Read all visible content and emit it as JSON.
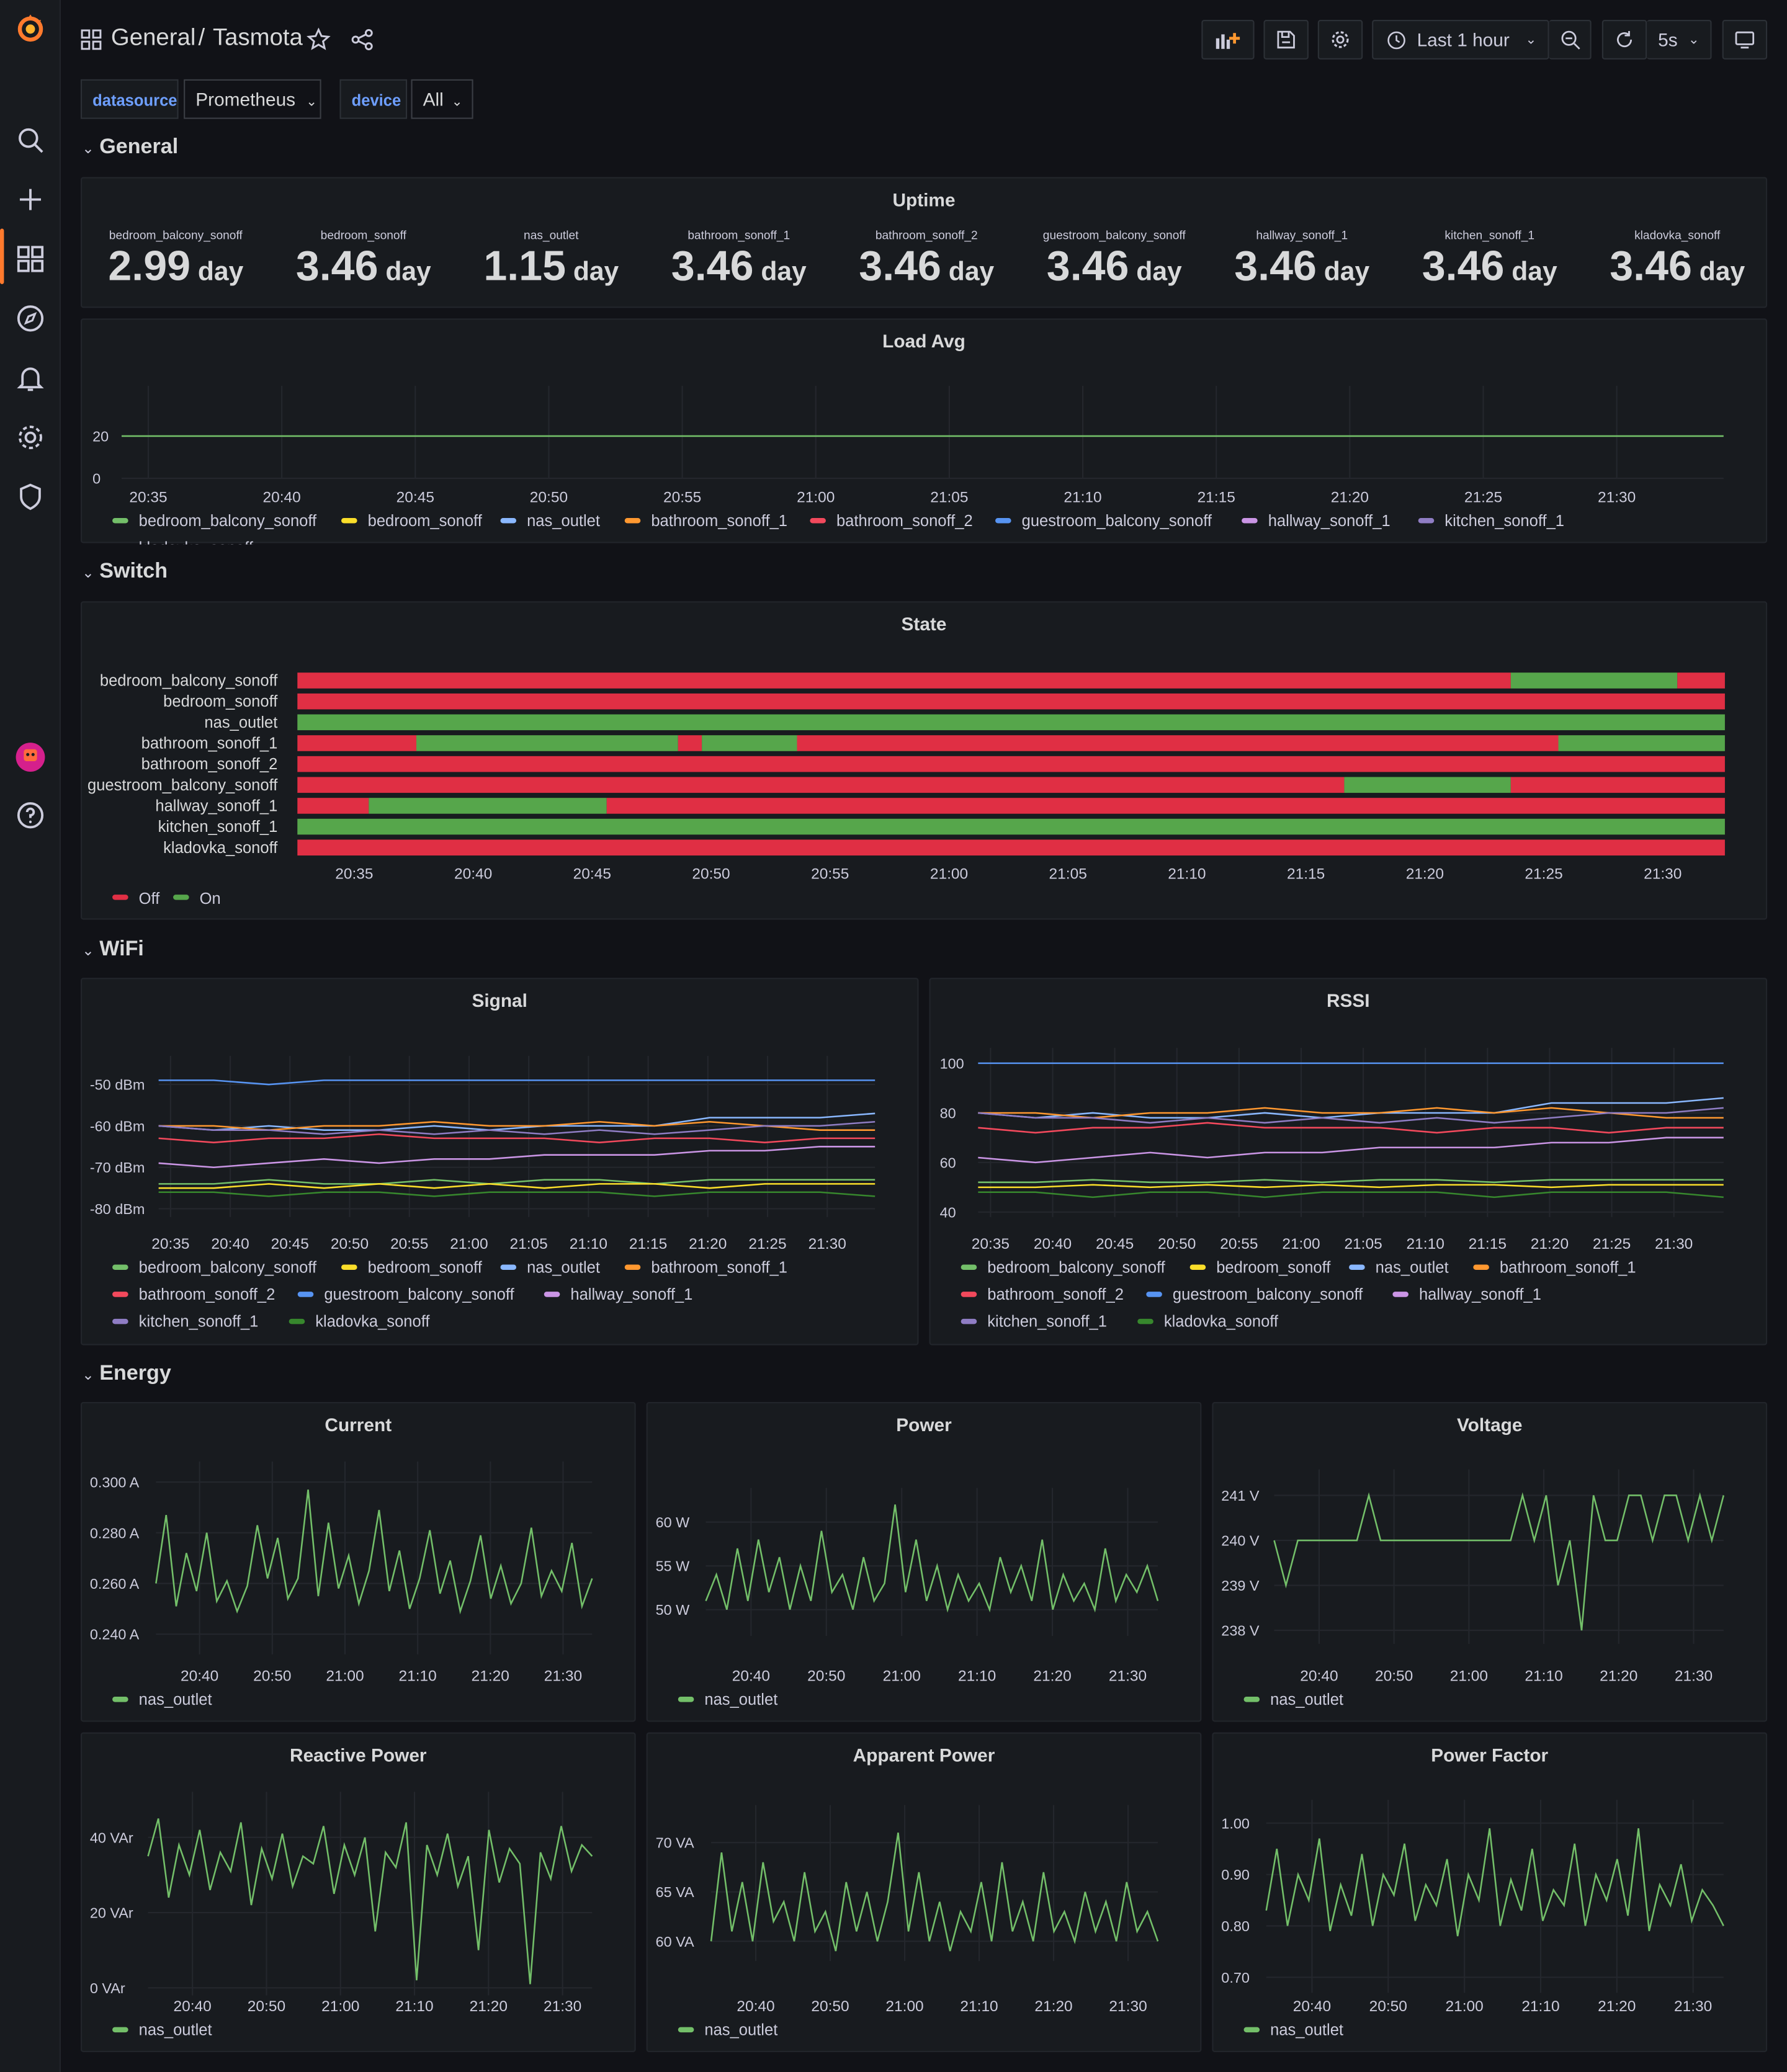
{
  "breadcrumb": {
    "folder": "General",
    "dashboard": "Tasmota"
  },
  "toolbar": {
    "time_range": "Last 1 hour",
    "refresh": "5s"
  },
  "variables": [
    {
      "label": "datasource",
      "value": "Prometheus"
    },
    {
      "label": "device",
      "value": "All"
    }
  ],
  "colors": {
    "green": "#73bf69",
    "yellow": "#fade2a",
    "lightblue": "#8ab8ff",
    "orange": "#ff9830",
    "red": "#f2495c",
    "blue": "#5794f2",
    "pink": "#ca95e5",
    "purple": "#8f7dc4",
    "darkgreen": "#37872d",
    "on": "#56a64b",
    "off": "#e02f44"
  },
  "rows": {
    "general": "General",
    "switch": "Switch",
    "wifi": "WiFi",
    "energy": "Energy"
  },
  "devices": [
    "bedroom_balcony_sonoff",
    "bedroom_sonoff",
    "nas_outlet",
    "bathroom_sonoff_1",
    "bathroom_sonoff_2",
    "guestroom_balcony_sonoff",
    "hallway_sonoff_1",
    "kitchen_sonoff_1",
    "kladovka_sonoff"
  ],
  "uptime": {
    "title": "Uptime",
    "unit": "day",
    "stats": [
      {
        "name": "bedroom_balcony_sonoff",
        "value": "2.99"
      },
      {
        "name": "bedroom_sonoff",
        "value": "3.46"
      },
      {
        "name": "nas_outlet",
        "value": "1.15"
      },
      {
        "name": "bathroom_sonoff_1",
        "value": "3.46"
      },
      {
        "name": "bathroom_sonoff_2",
        "value": "3.46"
      },
      {
        "name": "guestroom_balcony_sonoff",
        "value": "3.46"
      },
      {
        "name": "hallway_sonoff_1",
        "value": "3.46"
      },
      {
        "name": "kitchen_sonoff_1",
        "value": "3.46"
      },
      {
        "name": "kladovka_sonoff",
        "value": "3.46"
      }
    ]
  },
  "time_ticks_5m": [
    "20:35",
    "20:40",
    "20:45",
    "20:50",
    "20:55",
    "21:00",
    "21:05",
    "21:10",
    "21:15",
    "21:20",
    "21:25",
    "21:30"
  ],
  "time_ticks_10m": [
    "20:40",
    "20:50",
    "21:00",
    "21:10",
    "21:20",
    "21:30"
  ],
  "state_legend": {
    "off": "Off",
    "on": "On"
  },
  "chart_data": [
    {
      "type": "line",
      "title": "Load Avg",
      "x_range": [
        "20:34",
        "21:34"
      ],
      "ylim": [
        0,
        40
      ],
      "yticks": [
        "20",
        "0"
      ],
      "series": [
        {
          "name": "bedroom_balcony_sonoff",
          "values": [
            20,
            20
          ]
        }
      ]
    },
    {
      "type": "state-timeline",
      "title": "State",
      "x_range": [
        "20:33",
        "21:33"
      ],
      "segments": [
        {
          "name": "bedroom_balcony_sonoff",
          "states": [
            [
              "20:33",
              "21:24",
              "Off"
            ],
            [
              "21:24",
              "21:31",
              "On"
            ],
            [
              "21:31",
              "21:33",
              "Off"
            ]
          ]
        },
        {
          "name": "bedroom_sonoff",
          "states": [
            [
              "20:33",
              "21:33",
              "Off"
            ]
          ]
        },
        {
          "name": "nas_outlet",
          "states": [
            [
              "20:33",
              "21:33",
              "On"
            ]
          ]
        },
        {
          "name": "bathroom_sonoff_1",
          "states": [
            [
              "20:33",
              "20:38",
              "Off"
            ],
            [
              "20:38",
              "20:49",
              "On"
            ],
            [
              "20:49",
              "20:50",
              "Off"
            ],
            [
              "20:50",
              "20:54",
              "On"
            ],
            [
              "20:54",
              "21:26",
              "Off"
            ],
            [
              "21:26",
              "21:33",
              "On"
            ]
          ]
        },
        {
          "name": "bathroom_sonoff_2",
          "states": [
            [
              "20:33",
              "21:33",
              "Off"
            ]
          ]
        },
        {
          "name": "guestroom_balcony_sonoff",
          "states": [
            [
              "20:33",
              "21:17",
              "Off"
            ],
            [
              "21:17",
              "21:24",
              "On"
            ],
            [
              "21:24",
              "21:33",
              "Off"
            ]
          ]
        },
        {
          "name": "hallway_sonoff_1",
          "states": [
            [
              "20:33",
              "20:36",
              "Off"
            ],
            [
              "20:36",
              "20:46",
              "On"
            ],
            [
              "20:46",
              "21:33",
              "Off"
            ]
          ]
        },
        {
          "name": "kitchen_sonoff_1",
          "states": [
            [
              "20:33",
              "21:33",
              "On"
            ]
          ]
        },
        {
          "name": "kladovka_sonoff",
          "states": [
            [
              "20:33",
              "21:33",
              "Off"
            ]
          ]
        }
      ]
    },
    {
      "type": "line",
      "title": "Signal",
      "unit": "dBm",
      "x_range": [
        "20:34",
        "21:34"
      ],
      "ylim": [
        -82,
        -45
      ],
      "yticks": [
        "-50 dBm",
        "-60 dBm",
        "-70 dBm",
        "-80 dBm"
      ],
      "series": [
        {
          "name": "bedroom_balcony_sonoff",
          "values": [
            -74,
            -74,
            -73,
            -74,
            -74,
            -73,
            -74,
            -73,
            -73,
            -74,
            -73,
            -73,
            -73,
            -73
          ]
        },
        {
          "name": "bedroom_sonoff",
          "values": [
            -75,
            -75,
            -74,
            -75,
            -74,
            -75,
            -74,
            -75,
            -74,
            -74,
            -75,
            -74,
            -74,
            -74
          ]
        },
        {
          "name": "nas_outlet",
          "values": [
            -60,
            -61,
            -60,
            -61,
            -61,
            -60,
            -61,
            -60,
            -60,
            -60,
            -58,
            -58,
            -58,
            -57
          ]
        },
        {
          "name": "bathroom_sonoff_1",
          "values": [
            -60,
            -60,
            -61,
            -60,
            -60,
            -59,
            -60,
            -60,
            -59,
            -60,
            -59,
            -60,
            -61,
            -61
          ]
        },
        {
          "name": "bathroom_sonoff_2",
          "values": [
            -63,
            -64,
            -63,
            -63,
            -62,
            -63,
            -63,
            -63,
            -64,
            -63,
            -63,
            -64,
            -63,
            -63
          ]
        },
        {
          "name": "guestroom_balcony_sonoff",
          "values": [
            -49,
            -49,
            -50,
            -49,
            -49,
            -49,
            -49,
            -49,
            -49,
            -49,
            -49,
            -49,
            -49,
            -49
          ]
        },
        {
          "name": "hallway_sonoff_1",
          "values": [
            -69,
            -70,
            -69,
            -68,
            -69,
            -68,
            -68,
            -67,
            -67,
            -67,
            -66,
            -66,
            -65,
            -65
          ]
        },
        {
          "name": "kitchen_sonoff_1",
          "values": [
            -60,
            -61,
            -61,
            -62,
            -61,
            -62,
            -61,
            -62,
            -61,
            -62,
            -61,
            -60,
            -60,
            -59
          ]
        },
        {
          "name": "kladovka_sonoff",
          "values": [
            -76,
            -76,
            -77,
            -76,
            -76,
            -77,
            -76,
            -76,
            -76,
            -77,
            -76,
            -76,
            -76,
            -77
          ]
        }
      ]
    },
    {
      "type": "line",
      "title": "RSSI",
      "x_range": [
        "20:34",
        "21:34"
      ],
      "ylim": [
        38,
        103
      ],
      "yticks": [
        "100",
        "80",
        "60",
        "40"
      ],
      "series": [
        {
          "name": "bedroom_balcony_sonoff",
          "values": [
            52,
            52,
            53,
            52,
            52,
            53,
            52,
            53,
            53,
            52,
            53,
            53,
            53,
            53
          ]
        },
        {
          "name": "bedroom_sonoff",
          "values": [
            50,
            50,
            51,
            50,
            51,
            50,
            51,
            50,
            51,
            51,
            50,
            51,
            51,
            51
          ]
        },
        {
          "name": "nas_outlet",
          "values": [
            80,
            78,
            80,
            78,
            78,
            80,
            78,
            80,
            80,
            80,
            84,
            84,
            84,
            86
          ]
        },
        {
          "name": "bathroom_sonoff_1",
          "values": [
            80,
            80,
            78,
            80,
            80,
            82,
            80,
            80,
            82,
            80,
            82,
            80,
            78,
            78
          ]
        },
        {
          "name": "bathroom_sonoff_2",
          "values": [
            74,
            72,
            74,
            74,
            76,
            74,
            74,
            74,
            72,
            74,
            74,
            72,
            74,
            74
          ]
        },
        {
          "name": "guestroom_balcony_sonoff",
          "values": [
            100,
            100,
            100,
            100,
            100,
            100,
            100,
            100,
            100,
            100,
            100,
            100,
            100,
            100
          ]
        },
        {
          "name": "hallway_sonoff_1",
          "values": [
            62,
            60,
            62,
            64,
            62,
            64,
            64,
            66,
            66,
            66,
            68,
            68,
            70,
            70
          ]
        },
        {
          "name": "kitchen_sonoff_1",
          "values": [
            80,
            78,
            78,
            76,
            78,
            76,
            78,
            76,
            78,
            76,
            78,
            80,
            80,
            82
          ]
        },
        {
          "name": "kladovka_sonoff",
          "values": [
            48,
            48,
            46,
            48,
            48,
            46,
            48,
            48,
            48,
            46,
            48,
            48,
            48,
            46
          ]
        }
      ]
    },
    {
      "type": "line",
      "title": "Current",
      "x_range": [
        "20:34",
        "21:34"
      ],
      "ylim": [
        0.232,
        0.305
      ],
      "yticks": [
        "0.300 A",
        "0.280 A",
        "0.260 A",
        "0.240 A"
      ],
      "series": [
        {
          "name": "nas_outlet",
          "values": [
            0.26,
            0.287,
            0.251,
            0.272,
            0.257,
            0.28,
            0.253,
            0.261,
            0.249,
            0.259,
            0.283,
            0.262,
            0.278,
            0.254,
            0.262,
            0.297,
            0.255,
            0.284,
            0.258,
            0.271,
            0.252,
            0.265,
            0.289,
            0.257,
            0.273,
            0.25,
            0.262,
            0.281,
            0.256,
            0.269,
            0.249,
            0.261,
            0.279,
            0.254,
            0.267,
            0.252,
            0.26,
            0.282,
            0.255,
            0.265,
            0.257,
            0.276,
            0.251,
            0.262
          ]
        }
      ]
    },
    {
      "type": "line",
      "title": "Power",
      "x_range": [
        "20:34",
        "21:34"
      ],
      "ylim": [
        47,
        63
      ],
      "yticks": [
        "60 W",
        "55 W",
        "50 W"
      ],
      "series": [
        {
          "name": "nas_outlet",
          "values": [
            51,
            54,
            50,
            57,
            51,
            58,
            52,
            56,
            50,
            55,
            51,
            59,
            52,
            54,
            50,
            56,
            51,
            53,
            62,
            52,
            58,
            51,
            55,
            50,
            54,
            51,
            53,
            50,
            56,
            52,
            55,
            51,
            58,
            50,
            54,
            51,
            53,
            50,
            57,
            51,
            54,
            52,
            55,
            51
          ]
        }
      ]
    },
    {
      "type": "line",
      "title": "Voltage",
      "x_range": [
        "20:34",
        "21:34"
      ],
      "ylim": [
        237.7,
        241.4
      ],
      "yticks": [
        "241 V",
        "240 V",
        "239 V",
        "238 V"
      ],
      "series": [
        {
          "name": "nas_outlet",
          "values": [
            240,
            239,
            240,
            240,
            240,
            240,
            240,
            240,
            241,
            240,
            240,
            240,
            240,
            240,
            240,
            240,
            240,
            240,
            240,
            240,
            240,
            241,
            240,
            241,
            239,
            240,
            238,
            241,
            240,
            240,
            241,
            241,
            240,
            241,
            241,
            240,
            241,
            240,
            241
          ]
        }
      ]
    },
    {
      "type": "line",
      "title": "Reactive Power",
      "x_range": [
        "20:34",
        "21:34"
      ],
      "ylim": [
        -2,
        50
      ],
      "yticks": [
        "40 VAr",
        "20 VAr",
        "0 VAr"
      ],
      "series": [
        {
          "name": "nas_outlet",
          "values": [
            35,
            45,
            24,
            38,
            30,
            42,
            26,
            36,
            31,
            44,
            22,
            37,
            29,
            41,
            27,
            35,
            33,
            43,
            25,
            38,
            30,
            40,
            15,
            36,
            32,
            44,
            2,
            38,
            30,
            41,
            27,
            35,
            10,
            42,
            28,
            37,
            33,
            1,
            36,
            29,
            43,
            31,
            38,
            35
          ]
        }
      ]
    },
    {
      "type": "line",
      "title": "Apparent Power",
      "x_range": [
        "20:34",
        "21:34"
      ],
      "ylim": [
        58,
        73
      ],
      "yticks": [
        "70 VA",
        "65 VA",
        "60 VA"
      ],
      "series": [
        {
          "name": "nas_outlet",
          "values": [
            60,
            69,
            61,
            66,
            60,
            68,
            62,
            64,
            60,
            67,
            61,
            63,
            59,
            66,
            61,
            65,
            60,
            64,
            71,
            61,
            67,
            60,
            64,
            59,
            63,
            61,
            66,
            60,
            68,
            61,
            64,
            60,
            67,
            61,
            63,
            60,
            65,
            61,
            64,
            60,
            66,
            61,
            63,
            60
          ]
        }
      ]
    },
    {
      "type": "line",
      "title": "Power Factor",
      "x_range": [
        "20:34",
        "21:34"
      ],
      "ylim": [
        0.67,
        1.03
      ],
      "yticks": [
        "1.00",
        "0.90",
        "0.80",
        "0.70"
      ],
      "series": [
        {
          "name": "nas_outlet",
          "values": [
            0.83,
            0.95,
            0.8,
            0.9,
            0.85,
            0.97,
            0.79,
            0.88,
            0.82,
            0.94,
            0.8,
            0.9,
            0.86,
            0.96,
            0.81,
            0.88,
            0.84,
            0.93,
            0.78,
            0.9,
            0.85,
            0.99,
            0.8,
            0.89,
            0.83,
            0.95,
            0.81,
            0.87,
            0.84,
            0.96,
            0.8,
            0.9,
            0.85,
            0.93,
            0.82,
            0.99,
            0.79,
            0.88,
            0.84,
            0.92,
            0.81,
            0.87,
            0.84,
            0.8
          ]
        }
      ]
    }
  ]
}
